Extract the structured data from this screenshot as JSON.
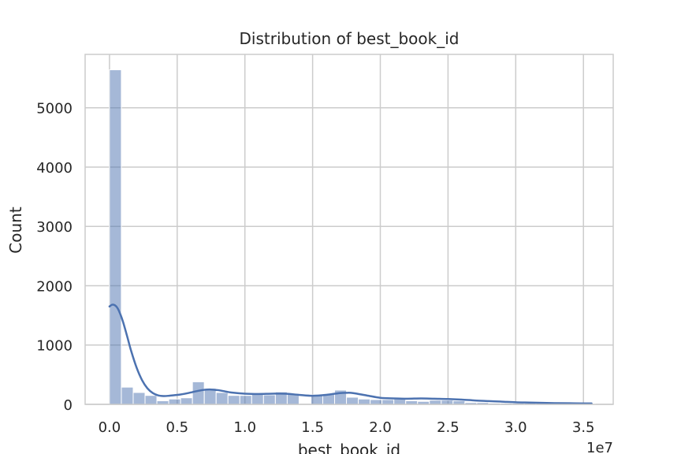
{
  "chart_data": {
    "type": "bar",
    "subtype": "histogram-with-kde",
    "title": "Distribution of best_book_id",
    "xlabel": "best_book_id",
    "ylabel": "Count",
    "x_offset_label": "1e7",
    "xlim": [
      -1.8,
      37.2
    ],
    "ylim": [
      0,
      5900
    ],
    "x_ticks": [
      0,
      5,
      10,
      15,
      20,
      25,
      30,
      35
    ],
    "x_tick_labels": [
      "0.0",
      "0.5",
      "1.0",
      "1.5",
      "2.0",
      "2.5",
      "3.0",
      "3.5"
    ],
    "y_ticks": [
      0,
      1000,
      2000,
      3000,
      4000,
      5000
    ],
    "y_tick_labels": [
      "0",
      "1000",
      "2000",
      "3000",
      "4000",
      "5000"
    ],
    "grid": true,
    "bar_color": "#4c72b0",
    "bars": {
      "bin_start": 0.0,
      "bin_width": 0.875,
      "values": [
        5640,
        290,
        200,
        150,
        60,
        90,
        110,
        380,
        270,
        200,
        150,
        150,
        170,
        160,
        210,
        180,
        0,
        160,
        180,
        240,
        120,
        90,
        80,
        80,
        90,
        60,
        50,
        70,
        70,
        60,
        30,
        30,
        20,
        20,
        20,
        20,
        20,
        20,
        10,
        10,
        10
      ]
    },
    "kde": {
      "x": [
        0,
        0.2,
        0.4,
        0.6,
        0.8,
        1.0,
        1.3,
        1.6,
        2.0,
        2.4,
        2.8,
        3.2,
        3.6,
        4.0,
        4.4,
        4.8,
        5.2,
        5.6,
        6.0,
        6.5,
        7.0,
        7.5,
        8.0,
        8.5,
        9.0,
        10.0,
        11.0,
        12.0,
        13.0,
        14.0,
        15.0,
        16.0,
        17.0,
        17.5,
        18.0,
        19.0,
        20.0,
        21.0,
        22.0,
        23.0,
        24.0,
        25.0,
        26.0,
        27.0,
        28.0,
        29.0,
        30.0,
        31.0,
        32.0,
        33.0,
        34.0,
        35.0,
        35.6
      ],
      "y": [
        1650,
        1680,
        1670,
        1620,
        1520,
        1390,
        1150,
        900,
        620,
        410,
        270,
        190,
        150,
        140,
        145,
        155,
        165,
        180,
        200,
        225,
        245,
        250,
        240,
        220,
        200,
        180,
        175,
        180,
        180,
        160,
        145,
        160,
        190,
        195,
        190,
        150,
        110,
        100,
        95,
        100,
        95,
        90,
        80,
        65,
        55,
        45,
        35,
        30,
        25,
        20,
        18,
        15,
        15
      ]
    }
  }
}
